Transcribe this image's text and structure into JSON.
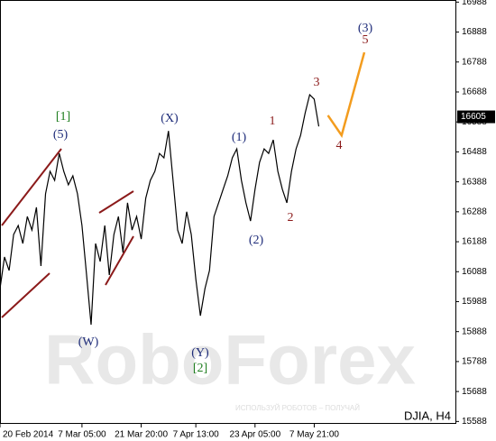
{
  "chart_data": {
    "type": "line",
    "label": "DJIA, H4",
    "watermark": "RoboForex",
    "watermark_text": "ИСПОЛЬЗУЙ РОБОТОВ – ПОЛУЧАЙ",
    "last_price": 16605,
    "xlim": [
      0,
      100
    ],
    "ylim": [
      15580,
      16995
    ],
    "xticks": [
      {
        "value": 0,
        "label": "20 Feb 2014"
      },
      {
        "value": 18,
        "label": "7 Mar 05:00"
      },
      {
        "value": 31,
        "label": "21 Mar 20:00"
      },
      {
        "value": 43,
        "label": "7 Apr 13:00"
      },
      {
        "value": 56,
        "label": "23 Apr 05:00"
      },
      {
        "value": 69,
        "label": "7 May 21:00"
      }
    ],
    "yticks": [
      16988,
      16888,
      16788,
      16688,
      16588,
      16488,
      16388,
      16288,
      16188,
      16088,
      15988,
      15888,
      15788,
      15688,
      15588
    ],
    "series": [
      {
        "color": "#000000",
        "x": [
          0,
          1,
          2,
          3,
          4,
          5,
          6,
          7,
          8,
          9,
          10,
          11,
          12,
          13,
          14,
          15,
          16,
          17,
          18,
          19,
          20,
          21,
          22,
          23,
          24,
          25,
          26,
          27,
          28,
          29,
          30,
          31,
          32,
          33,
          34,
          35,
          36,
          37,
          38,
          39,
          40,
          41,
          42,
          43,
          44,
          45,
          46,
          47,
          48,
          49,
          50,
          51,
          52,
          53,
          54,
          55,
          56,
          57,
          58,
          59,
          60,
          61,
          62,
          63,
          64,
          65,
          66,
          67,
          68,
          69,
          70
        ],
        "values": [
          16032,
          16137,
          16092,
          16212,
          16242,
          16182,
          16272,
          16227,
          16303,
          16107,
          16348,
          16423,
          16393,
          16483,
          16423,
          16378,
          16408,
          16348,
          16242,
          16077,
          15911,
          16182,
          16122,
          16242,
          16077,
          16212,
          16272,
          16152,
          16318,
          16227,
          16272,
          16197,
          16333,
          16393,
          16423,
          16483,
          16468,
          16558,
          16393,
          16227,
          16182,
          16288,
          16212,
          16062,
          15941,
          16032,
          16092,
          16272,
          16318,
          16363,
          16408,
          16468,
          16498,
          16393,
          16318,
          16257,
          16363,
          16453,
          16498,
          16483,
          16528,
          16423,
          16363,
          16318,
          16423,
          16498,
          16543,
          16618,
          16679,
          16664,
          16573
        ]
      },
      {
        "color": "#f39c1e",
        "x": [
          72,
          75,
          80
        ],
        "values": [
          16610,
          16543,
          16820
        ]
      }
    ],
    "annotations": [
      {
        "text": "[1]",
        "color": "#1e7d1e"
      },
      {
        "text": "(5)",
        "color": "#1c2a78"
      },
      {
        "text": "(X)",
        "color": "#1c2a78"
      },
      {
        "text": "(1)",
        "color": "#1c2a78"
      },
      {
        "text": "1",
        "color": "#8b1a1a"
      },
      {
        "text": "3",
        "color": "#8b1a1a"
      },
      {
        "text": "(3)",
        "color": "#1c2a78"
      },
      {
        "text": "5",
        "color": "#8b1a1a"
      },
      {
        "text": "4",
        "color": "#8b1a1a"
      },
      {
        "text": "(W)",
        "color": "#1c2a78"
      },
      {
        "text": "(Y)",
        "color": "#1c2a78"
      },
      {
        "text": "[2]",
        "color": "#1e7d1e"
      },
      {
        "text": "2",
        "color": "#8b1a1a"
      },
      {
        "text": "(2)",
        "color": "#1c2a78"
      }
    ]
  }
}
